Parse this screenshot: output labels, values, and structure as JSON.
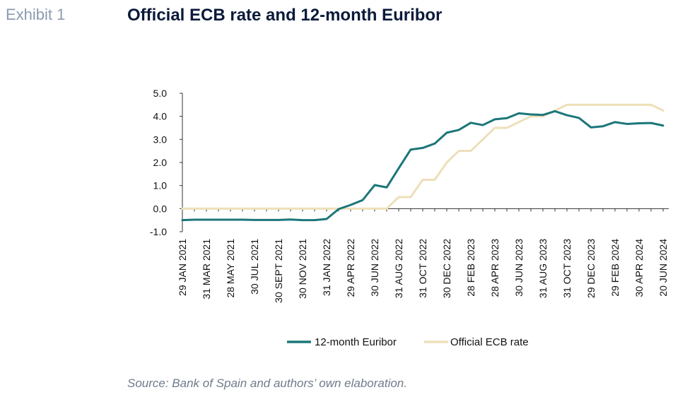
{
  "header": {
    "exhibit": "Exhibit 1",
    "title": "Official ECB rate and 12-month Euribor"
  },
  "footer": {
    "source": "Source: Bank of Spain and authors’ own elaboration."
  },
  "colors": {
    "euribor": "#1b7679",
    "ecb": "#eddfb8",
    "axis": "#333333",
    "text": "#111111"
  },
  "chart_data": {
    "type": "line",
    "title": "Official ECB rate and 12-month Euribor",
    "xlabel": "",
    "ylabel": "",
    "ylim": [
      -1.0,
      5.0
    ],
    "yticks": [
      "5.0",
      "4.0",
      "3.0",
      "2.0",
      "1.0",
      "0.0",
      "-1.0"
    ],
    "ytick_values": [
      5,
      4,
      3,
      2,
      1,
      0,
      -1
    ],
    "grid": false,
    "legend_position": "bottom",
    "x_labels": [
      "29 JAN 2021",
      "31 MAR 2021",
      "28 MAY 2021",
      "30 JUL 2021",
      "30 SEPT 2021",
      "30 NOV 2021",
      "31 JAN 2022",
      "29 APR 2022",
      "30 JUN 2022",
      "31 AUG 2022",
      "31 OCT 2022",
      "30 DEC 2022",
      "28 FEB 2023",
      "28 APR 2023",
      "30 JUN 2023",
      "31 AUG 2023",
      "31 OCT 2023",
      "29 DEC 2023",
      "29 FEB 2024",
      "30 APR 2024",
      "20 JUN 2024"
    ],
    "x_label_index": [
      0,
      2,
      4,
      6,
      8,
      10,
      12,
      14,
      16,
      18,
      20,
      22,
      24,
      26,
      28,
      30,
      32,
      34,
      36,
      38,
      40
    ],
    "series": [
      {
        "name": "12-month Euribor",
        "color": "#1b7679",
        "values": [
          -0.5,
          -0.48,
          -0.48,
          -0.48,
          -0.48,
          -0.48,
          -0.49,
          -0.49,
          -0.49,
          -0.47,
          -0.5,
          -0.5,
          -0.45,
          -0.02,
          0.16,
          0.37,
          1.02,
          0.92,
          1.75,
          2.56,
          2.63,
          2.82,
          3.29,
          3.41,
          3.72,
          3.62,
          3.87,
          3.92,
          4.13,
          4.08,
          4.06,
          4.22,
          4.05,
          3.93,
          3.52,
          3.57,
          3.75,
          3.67,
          3.7,
          3.71,
          3.6
        ]
      },
      {
        "name": "Official ECB rate",
        "color": "#eddfb8",
        "values": [
          0,
          0,
          0,
          0,
          0,
          0,
          0,
          0,
          0,
          0,
          0,
          0,
          0,
          0,
          0,
          0,
          0,
          0,
          0.5,
          0.5,
          1.25,
          1.25,
          2.0,
          2.5,
          2.5,
          3.0,
          3.5,
          3.5,
          3.75,
          4.0,
          4.0,
          4.25,
          4.5,
          4.5,
          4.5,
          4.5,
          4.5,
          4.5,
          4.5,
          4.5,
          4.25
        ]
      }
    ]
  }
}
